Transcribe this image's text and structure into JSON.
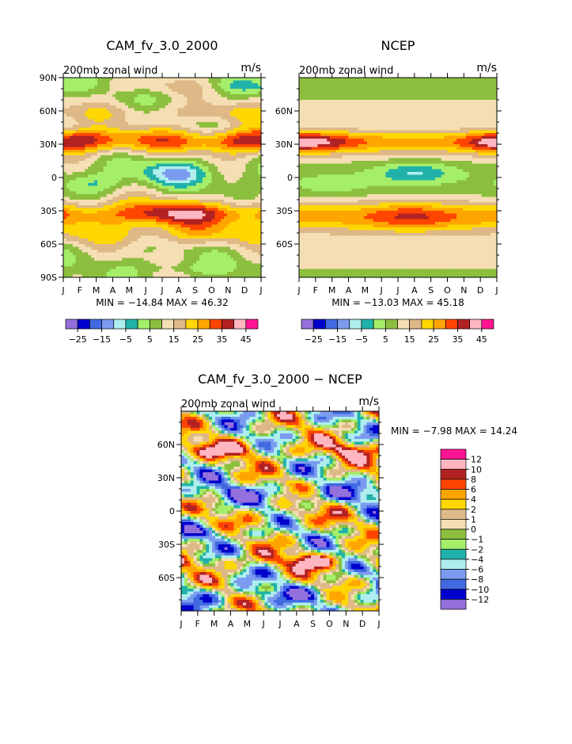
{
  "palettes": {
    "top": [
      "#9370db",
      "#0000cd",
      "#4169e1",
      "#7b9bef",
      "#afeeee",
      "#20b2aa",
      "#a4ee6a",
      "#8cbf3f",
      "#f5deb3",
      "#deb887",
      "#ffd700",
      "#ffa500",
      "#ff4500",
      "#b22222",
      "#ffb6c1",
      "#ff1493"
    ],
    "diff": [
      "#ff1493",
      "#ffb6c1",
      "#b22222",
      "#ff4500",
      "#ffa500",
      "#ffd700",
      "#deb887",
      "#f5deb3",
      "#8cbf3f",
      "#a4ee6a",
      "#20b2aa",
      "#afeeee",
      "#7b9bef",
      "#4169e1",
      "#0000cd",
      "#9370db"
    ]
  },
  "chart_data": [
    {
      "type": "heatmap",
      "title": "CAM_fv_3.0_2000",
      "subtitle": "200mb zonal wind",
      "units": "m/s",
      "x_tick_labels": [
        "J",
        "F",
        "M",
        "A",
        "M",
        "J",
        "J",
        "A",
        "S",
        "O",
        "N",
        "D",
        "J"
      ],
      "y_tick_labels": [
        "90N",
        "60N",
        "30N",
        "0",
        "30S",
        "60S",
        "90S"
      ],
      "y_ticks_deg": [
        90,
        60,
        30,
        0,
        -30,
        -60,
        -90
      ],
      "ylim": [
        -90,
        90
      ],
      "stats": "MIN = −14.84 MAX =  46.32",
      "colorbar_labels": [
        "−25",
        "−15",
        "−5",
        "5",
        "15",
        "25",
        "35",
        "45"
      ]
    },
    {
      "type": "heatmap",
      "title": "NCEP",
      "subtitle": "200mb zonal wind",
      "units": "m/s",
      "x_tick_labels": [
        "J",
        "F",
        "M",
        "A",
        "M",
        "J",
        "J",
        "A",
        "S",
        "O",
        "N",
        "D",
        "J"
      ],
      "y_tick_labels": [
        "60N",
        "30N",
        "0",
        "30S",
        "60S"
      ],
      "y_ticks_deg": [
        60,
        30,
        0,
        -30,
        -60
      ],
      "ylim": [
        -90,
        90
      ],
      "stats": "MIN = −13.03 MAX =  45.18",
      "colorbar_labels": [
        "−25",
        "−15",
        "−5",
        "5",
        "15",
        "25",
        "35",
        "45"
      ]
    },
    {
      "type": "heatmap",
      "title": "CAM_fv_3.0_2000 − NCEP",
      "subtitle": "200mb zonal wind",
      "units": "m/s",
      "x_tick_labels": [
        "J",
        "F",
        "M",
        "A",
        "M",
        "J",
        "J",
        "A",
        "S",
        "O",
        "N",
        "D",
        "J"
      ],
      "y_tick_labels": [
        "60N",
        "30N",
        "0",
        "30S",
        "60S"
      ],
      "y_ticks_deg": [
        60,
        30,
        0,
        -30,
        -60
      ],
      "ylim": [
        -90,
        90
      ],
      "stats": "MIN =  −7.98 MAX =  14.24",
      "colorbar_labels": [
        "12",
        "10",
        "8",
        "6",
        "4",
        "2",
        "1",
        "0",
        "−1",
        "−2",
        "−4",
        "−6",
        "−8",
        "−10",
        "−12"
      ]
    }
  ]
}
